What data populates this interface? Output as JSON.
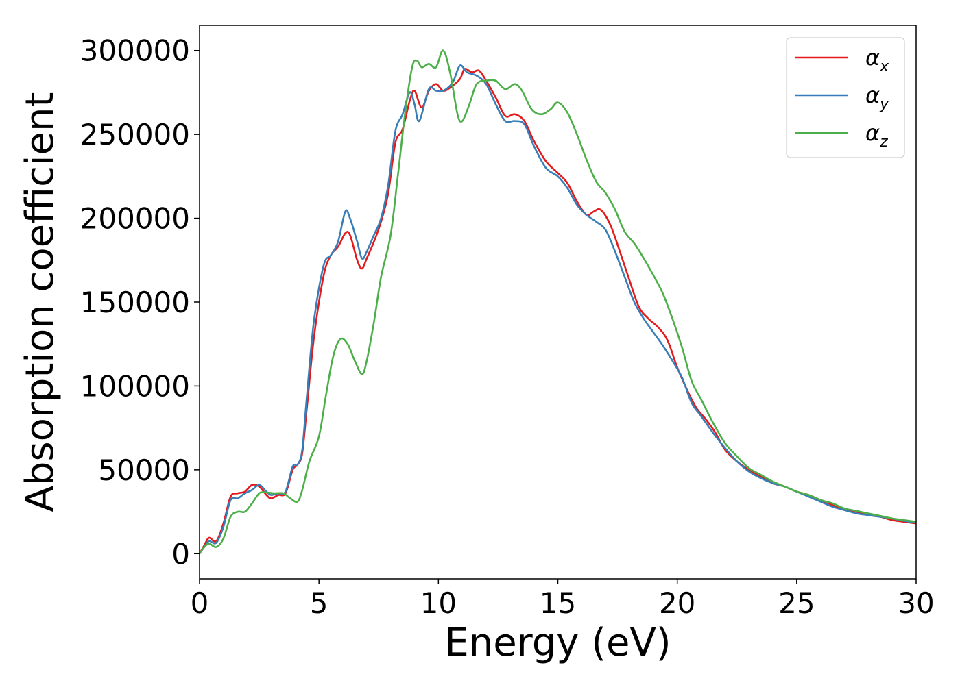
{
  "chart_data": {
    "type": "line",
    "xlabel": "Energy (eV)",
    "ylabel": "Absorption coefficient",
    "xlim": [
      0,
      30
    ],
    "ylim": [
      -15000,
      315000
    ],
    "xticks": [
      0,
      5,
      10,
      15,
      20,
      25,
      30
    ],
    "xtick_labels": [
      "0",
      "5",
      "10",
      "15",
      "20",
      "25",
      "30"
    ],
    "yticks": [
      0,
      50000,
      100000,
      150000,
      200000,
      250000,
      300000
    ],
    "ytick_labels": [
      "0",
      "50000",
      "100000",
      "150000",
      "200000",
      "250000",
      "300000"
    ],
    "grid": false,
    "legend_position": "top-right",
    "series": [
      {
        "name": "α",
        "subscript": "x",
        "color": "#e41a1c",
        "points": [
          [
            0,
            0
          ],
          [
            0.2,
            5000
          ],
          [
            0.4,
            9500
          ],
          [
            0.7,
            7500
          ],
          [
            1.0,
            18000
          ],
          [
            1.3,
            34000
          ],
          [
            1.6,
            36000
          ],
          [
            1.9,
            37000
          ],
          [
            2.2,
            41000
          ],
          [
            2.5,
            40000
          ],
          [
            2.8,
            35000
          ],
          [
            3.0,
            33000
          ],
          [
            3.3,
            35000
          ],
          [
            3.6,
            36000
          ],
          [
            3.9,
            50000
          ],
          [
            4.1,
            53000
          ],
          [
            4.3,
            60000
          ],
          [
            4.5,
            88000
          ],
          [
            4.8,
            130000
          ],
          [
            5.2,
            166000
          ],
          [
            5.5,
            178000
          ],
          [
            5.8,
            183000
          ],
          [
            6.1,
            191000
          ],
          [
            6.3,
            190000
          ],
          [
            6.6,
            175000
          ],
          [
            6.8,
            170000
          ],
          [
            7.0,
            176000
          ],
          [
            7.3,
            186000
          ],
          [
            7.6,
            198000
          ],
          [
            7.9,
            215000
          ],
          [
            8.2,
            245000
          ],
          [
            8.5,
            253000
          ],
          [
            8.8,
            270000
          ],
          [
            9.0,
            276000
          ],
          [
            9.3,
            266000
          ],
          [
            9.6,
            276000
          ],
          [
            9.9,
            280000
          ],
          [
            10.2,
            276000
          ],
          [
            10.5,
            278000
          ],
          [
            10.9,
            283000
          ],
          [
            11.1,
            289000
          ],
          [
            11.4,
            287000
          ],
          [
            11.7,
            288000
          ],
          [
            12.0,
            282000
          ],
          [
            12.4,
            272000
          ],
          [
            12.8,
            261000
          ],
          [
            13.2,
            262000
          ],
          [
            13.6,
            258000
          ],
          [
            14.0,
            246000
          ],
          [
            14.5,
            234000
          ],
          [
            15.0,
            227000
          ],
          [
            15.4,
            221000
          ],
          [
            15.8,
            210000
          ],
          [
            16.2,
            202000
          ],
          [
            16.5,
            204000
          ],
          [
            16.8,
            205000
          ],
          [
            17.2,
            196000
          ],
          [
            17.6,
            180000
          ],
          [
            18.0,
            163000
          ],
          [
            18.4,
            147000
          ],
          [
            18.8,
            140000
          ],
          [
            19.2,
            135000
          ],
          [
            19.6,
            127000
          ],
          [
            20.0,
            111000
          ],
          [
            20.4,
            98000
          ],
          [
            20.8,
            87000
          ],
          [
            21.2,
            80000
          ],
          [
            21.6,
            72000
          ],
          [
            22.0,
            62000
          ],
          [
            22.5,
            55000
          ],
          [
            23.0,
            50000
          ],
          [
            23.5,
            46000
          ],
          [
            24.0,
            42000
          ],
          [
            24.5,
            40000
          ],
          [
            25.0,
            37000
          ],
          [
            25.5,
            35000
          ],
          [
            26.0,
            32000
          ],
          [
            26.5,
            29000
          ],
          [
            27.0,
            26000
          ],
          [
            27.5,
            25000
          ],
          [
            28.0,
            23000
          ],
          [
            28.5,
            22000
          ],
          [
            29.0,
            20000
          ],
          [
            29.5,
            19000
          ],
          [
            30.0,
            18000
          ]
        ]
      },
      {
        "name": "α",
        "subscript": "y",
        "color": "#377eb8",
        "points": [
          [
            0,
            0
          ],
          [
            0.2,
            4000
          ],
          [
            0.4,
            7500
          ],
          [
            0.7,
            6500
          ],
          [
            1.0,
            16000
          ],
          [
            1.3,
            32000
          ],
          [
            1.6,
            33000
          ],
          [
            1.9,
            36000
          ],
          [
            2.2,
            38000
          ],
          [
            2.5,
            41000
          ],
          [
            2.8,
            37000
          ],
          [
            3.0,
            35000
          ],
          [
            3.3,
            36000
          ],
          [
            3.6,
            37000
          ],
          [
            3.9,
            52000
          ],
          [
            4.1,
            53000
          ],
          [
            4.3,
            62000
          ],
          [
            4.5,
            95000
          ],
          [
            4.8,
            140000
          ],
          [
            5.2,
            172000
          ],
          [
            5.5,
            178000
          ],
          [
            5.8,
            186000
          ],
          [
            6.1,
            204000
          ],
          [
            6.3,
            200000
          ],
          [
            6.6,
            186000
          ],
          [
            6.8,
            176000
          ],
          [
            7.0,
            180000
          ],
          [
            7.3,
            190000
          ],
          [
            7.6,
            200000
          ],
          [
            7.9,
            220000
          ],
          [
            8.2,
            252000
          ],
          [
            8.5,
            262000
          ],
          [
            8.8,
            275000
          ],
          [
            9.0,
            268000
          ],
          [
            9.2,
            258000
          ],
          [
            9.6,
            277000
          ],
          [
            9.9,
            276000
          ],
          [
            10.2,
            276000
          ],
          [
            10.6,
            281000
          ],
          [
            10.9,
            291000
          ],
          [
            11.2,
            287000
          ],
          [
            11.6,
            285000
          ],
          [
            12.0,
            280000
          ],
          [
            12.4,
            268000
          ],
          [
            12.8,
            258000
          ],
          [
            13.2,
            258000
          ],
          [
            13.6,
            256000
          ],
          [
            14.0,
            243000
          ],
          [
            14.5,
            230000
          ],
          [
            15.0,
            225000
          ],
          [
            15.4,
            218000
          ],
          [
            15.8,
            208000
          ],
          [
            16.2,
            202000
          ],
          [
            16.6,
            198000
          ],
          [
            17.0,
            193000
          ],
          [
            17.4,
            180000
          ],
          [
            17.8,
            165000
          ],
          [
            18.2,
            150000
          ],
          [
            18.6,
            140000
          ],
          [
            19.0,
            132000
          ],
          [
            19.4,
            124000
          ],
          [
            19.8,
            115000
          ],
          [
            20.2,
            105000
          ],
          [
            20.6,
            90000
          ],
          [
            21.0,
            82000
          ],
          [
            21.5,
            72000
          ],
          [
            22.0,
            63000
          ],
          [
            22.5,
            55000
          ],
          [
            23.0,
            49000
          ],
          [
            23.5,
            45000
          ],
          [
            24.0,
            42000
          ],
          [
            24.5,
            40000
          ],
          [
            25.0,
            37000
          ],
          [
            25.5,
            34000
          ],
          [
            26.0,
            31000
          ],
          [
            26.5,
            28000
          ],
          [
            27.0,
            26000
          ],
          [
            27.5,
            24000
          ],
          [
            28.0,
            23000
          ],
          [
            28.5,
            22000
          ],
          [
            29.0,
            21000
          ],
          [
            29.5,
            19500
          ],
          [
            30.0,
            18500
          ]
        ]
      },
      {
        "name": "α",
        "subscript": "z",
        "color": "#4daf4a",
        "points": [
          [
            0,
            0
          ],
          [
            0.2,
            4000
          ],
          [
            0.4,
            6000
          ],
          [
            0.7,
            4000
          ],
          [
            1.0,
            9000
          ],
          [
            1.3,
            22000
          ],
          [
            1.6,
            25000
          ],
          [
            1.9,
            25000
          ],
          [
            2.2,
            30000
          ],
          [
            2.5,
            36000
          ],
          [
            2.8,
            36500
          ],
          [
            3.1,
            36000
          ],
          [
            3.5,
            36000
          ],
          [
            3.8,
            33000
          ],
          [
            4.1,
            31000
          ],
          [
            4.3,
            38000
          ],
          [
            4.6,
            55000
          ],
          [
            5.0,
            70000
          ],
          [
            5.3,
            95000
          ],
          [
            5.6,
            118000
          ],
          [
            5.9,
            128000
          ],
          [
            6.2,
            125000
          ],
          [
            6.5,
            115000
          ],
          [
            6.8,
            107000
          ],
          [
            7.0,
            115000
          ],
          [
            7.3,
            138000
          ],
          [
            7.6,
            165000
          ],
          [
            8.0,
            190000
          ],
          [
            8.3,
            225000
          ],
          [
            8.6,
            262000
          ],
          [
            8.9,
            290000
          ],
          [
            9.1,
            294000
          ],
          [
            9.3,
            290000
          ],
          [
            9.6,
            292000
          ],
          [
            9.9,
            290000
          ],
          [
            10.2,
            300000
          ],
          [
            10.5,
            286000
          ],
          [
            10.8,
            262000
          ],
          [
            11.0,
            258000
          ],
          [
            11.3,
            268000
          ],
          [
            11.6,
            280000
          ],
          [
            12.0,
            282000
          ],
          [
            12.4,
            282000
          ],
          [
            12.8,
            277000
          ],
          [
            13.2,
            280000
          ],
          [
            13.5,
            276000
          ],
          [
            13.9,
            265000
          ],
          [
            14.3,
            262000
          ],
          [
            14.7,
            265000
          ],
          [
            15.0,
            269000
          ],
          [
            15.4,
            263000
          ],
          [
            15.8,
            250000
          ],
          [
            16.2,
            235000
          ],
          [
            16.6,
            222000
          ],
          [
            17.0,
            215000
          ],
          [
            17.4,
            205000
          ],
          [
            17.8,
            192000
          ],
          [
            18.2,
            185000
          ],
          [
            18.6,
            176000
          ],
          [
            19.0,
            166000
          ],
          [
            19.4,
            155000
          ],
          [
            19.8,
            140000
          ],
          [
            20.2,
            123000
          ],
          [
            20.6,
            103000
          ],
          [
            21.0,
            92000
          ],
          [
            21.5,
            78000
          ],
          [
            22.0,
            66000
          ],
          [
            22.5,
            58000
          ],
          [
            23.0,
            51000
          ],
          [
            23.5,
            47000
          ],
          [
            24.0,
            43000
          ],
          [
            24.5,
            40000
          ],
          [
            25.0,
            37000
          ],
          [
            25.5,
            35000
          ],
          [
            26.0,
            32000
          ],
          [
            26.5,
            30000
          ],
          [
            27.0,
            27000
          ],
          [
            27.5,
            25500
          ],
          [
            28.0,
            24000
          ],
          [
            28.5,
            22500
          ],
          [
            29.0,
            21000
          ],
          [
            29.5,
            20000
          ],
          [
            30.0,
            19000
          ]
        ]
      }
    ]
  }
}
